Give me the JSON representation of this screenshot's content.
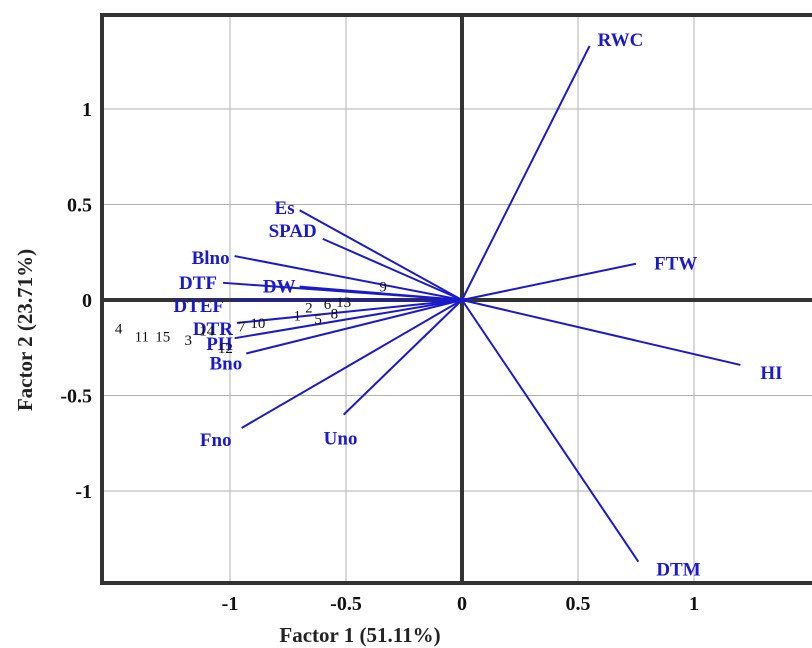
{
  "chart_data": {
    "type": "scatter",
    "subtype": "pca-biplot",
    "title": "",
    "xlabel": "Factor 1 (51.11%)",
    "ylabel": "Factor 2 (23.71%)",
    "xlim": [
      -1.5,
      1.45
    ],
    "ylim": [
      -1.2,
      1.55
    ],
    "xticks": [
      -1,
      -0.5,
      0,
      0.5,
      1
    ],
    "yticks": [
      -1,
      -0.5,
      0,
      0.5,
      1
    ],
    "x_tick_labels": [
      "-1",
      "-0.5",
      "0",
      "0.5",
      "1"
    ],
    "y_tick_labels": [
      "-1",
      "-0.5",
      "0",
      "0.5",
      "1"
    ],
    "grid": true,
    "vector_color": "#1a1acc",
    "point_label_color": "#111111",
    "variables": [
      {
        "name": "RWC",
        "x": 0.55,
        "y": 1.33
      },
      {
        "name": "FTW",
        "x": 0.75,
        "y": 0.19
      },
      {
        "name": "HI",
        "x": 1.2,
        "y": -0.34
      },
      {
        "name": "DTM",
        "x": 0.76,
        "y": -1.37
      },
      {
        "name": "Es",
        "x": -0.7,
        "y": 0.47
      },
      {
        "name": "SPAD",
        "x": -0.6,
        "y": 0.32
      },
      {
        "name": "Blno",
        "x": -0.98,
        "y": 0.23
      },
      {
        "name": "DW",
        "x": -0.7,
        "y": 0.07
      },
      {
        "name": "DTF",
        "x": -1.03,
        "y": 0.09
      },
      {
        "name": "DTEF",
        "x": -1.0,
        "y": 0.0
      },
      {
        "name": "DTR",
        "x": -0.97,
        "y": -0.12
      },
      {
        "name": "PH",
        "x": -0.98,
        "y": -0.2
      },
      {
        "name": "Bno",
        "x": -0.93,
        "y": -0.28
      },
      {
        "name": "Fno",
        "x": -0.95,
        "y": -0.67
      },
      {
        "name": "Uno",
        "x": -0.51,
        "y": -0.6
      }
    ],
    "observations": [
      {
        "label": "1",
        "x": -0.71,
        "y": -0.08
      },
      {
        "label": "2",
        "x": -0.66,
        "y": -0.04
      },
      {
        "label": "3",
        "x": -1.18,
        "y": -0.21
      },
      {
        "label": "4",
        "x": -1.48,
        "y": -0.15
      },
      {
        "label": "5",
        "x": -0.62,
        "y": -0.1
      },
      {
        "label": "6",
        "x": -0.58,
        "y": -0.02
      },
      {
        "label": "7",
        "x": -0.95,
        "y": -0.14
      },
      {
        "label": "8",
        "x": -0.55,
        "y": -0.07
      },
      {
        "label": "9",
        "x": -0.34,
        "y": 0.07
      },
      {
        "label": "10",
        "x": -0.88,
        "y": -0.12
      },
      {
        "label": "11",
        "x": -1.38,
        "y": -0.19
      },
      {
        "label": "12",
        "x": -1.02,
        "y": -0.25
      },
      {
        "label": "13",
        "x": -0.51,
        "y": -0.01
      },
      {
        "label": "14",
        "x": -1.1,
        "y": -0.16
      },
      {
        "label": "15",
        "x": -1.29,
        "y": -0.19
      }
    ]
  }
}
